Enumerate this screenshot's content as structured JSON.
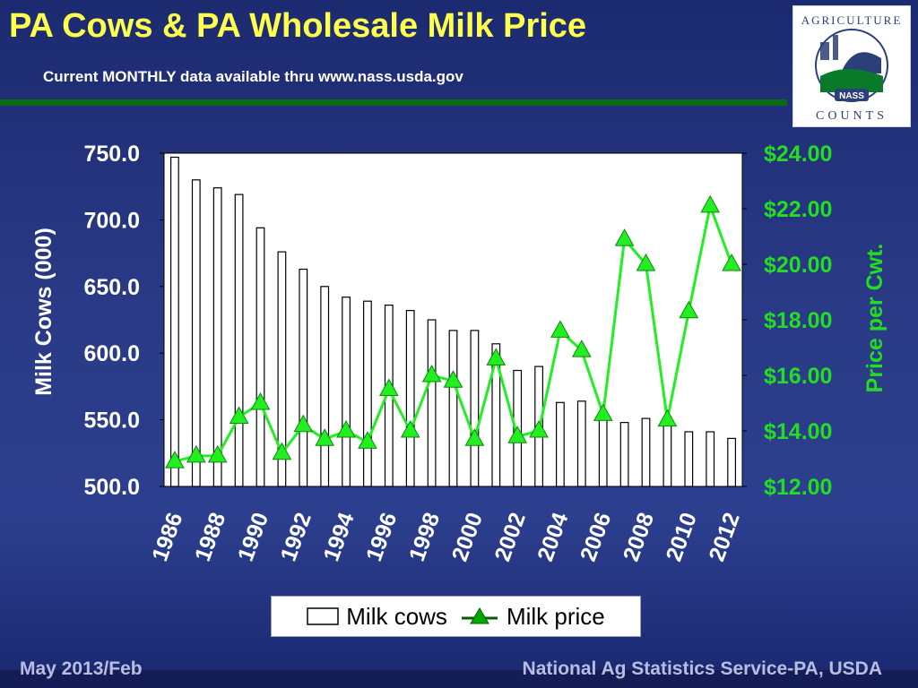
{
  "slide": {
    "title": "PA Cows & PA Wholesale Milk Price",
    "subtitle": "Current MONTHLY data available thru www.nass.usda.gov",
    "footer_left": "May 2013/Feb",
    "footer_right": "National Ag Statistics Service-PA, USDA"
  },
  "logo": {
    "text_top": "AGRICULTURE",
    "text_mid": "NASS",
    "text_bottom": "COUNTS"
  },
  "chart_data": {
    "type": "bar+line",
    "ylabel": "Milk Cows (000)",
    "y2label": "Price per Cwt.",
    "ylim": [
      500,
      750
    ],
    "y2lim": [
      12,
      24
    ],
    "yticks": [
      "750.0",
      "700.0",
      "650.0",
      "600.0",
      "550.0",
      "500.0"
    ],
    "y2ticks": [
      "$24.00",
      "$22.00",
      "$20.00",
      "$18.00",
      "$16.00",
      "$14.00",
      "$12.00"
    ],
    "xtick_labels": [
      "1986",
      "1988",
      "1990",
      "1992",
      "1994",
      "1996",
      "1998",
      "2000",
      "2002",
      "2004",
      "2006",
      "2008",
      "2010",
      "2012"
    ],
    "categories": [
      1986,
      1987,
      1988,
      1989,
      1990,
      1991,
      1992,
      1993,
      1994,
      1995,
      1996,
      1997,
      1998,
      1999,
      2000,
      2001,
      2002,
      2003,
      2004,
      2005,
      2006,
      2007,
      2008,
      2009,
      2010,
      2011,
      2012
    ],
    "series": [
      {
        "name": "Milk cows",
        "kind": "bar",
        "axis": "left",
        "values": [
          747,
          730,
          724,
          719,
          694,
          676,
          663,
          650,
          642,
          639,
          636,
          632,
          625,
          617,
          617,
          607,
          587,
          590,
          563,
          564,
          550,
          548,
          551,
          547,
          541,
          541,
          536
        ]
      },
      {
        "name": "Milk price",
        "kind": "line",
        "axis": "right",
        "values": [
          12.9,
          13.1,
          13.1,
          14.5,
          15.0,
          13.2,
          14.2,
          13.7,
          14.0,
          13.6,
          15.5,
          14.0,
          16.0,
          15.8,
          13.7,
          16.6,
          13.8,
          14.0,
          17.6,
          16.9,
          14.6,
          20.9,
          20.0,
          14.4,
          18.3,
          22.1,
          20.0
        ]
      }
    ],
    "colors": {
      "bar": "#ffffff",
      "line": "#22ee22",
      "price_axis": "#22dd22"
    },
    "legend_position": "bottom"
  }
}
